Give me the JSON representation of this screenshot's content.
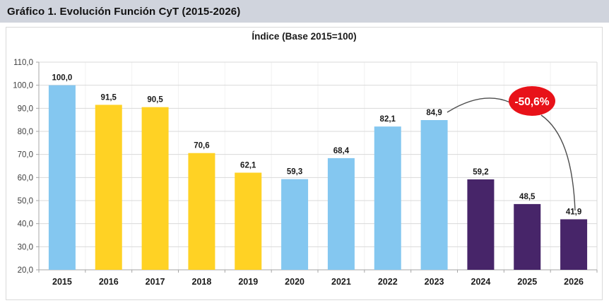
{
  "header": {
    "title": "Gráfico 1. Evolución Función CyT (2015-2026)"
  },
  "chart_data": {
    "type": "bar",
    "title": "Índice (Base 2015=100)",
    "categories": [
      "2015",
      "2016",
      "2017",
      "2018",
      "2019",
      "2020",
      "2021",
      "2022",
      "2023",
      "2024",
      "2025",
      "2026"
    ],
    "values": [
      100.0,
      91.5,
      90.5,
      70.6,
      62.1,
      59.3,
      68.4,
      82.1,
      84.9,
      59.2,
      48.5,
      41.9
    ],
    "value_labels": [
      "100,0",
      "91,5",
      "90,5",
      "70,6",
      "62,1",
      "59,3",
      "68,4",
      "82,1",
      "84,9",
      "59,2",
      "48,5",
      "41,9"
    ],
    "bar_color_keys": [
      "blue",
      "yellow",
      "yellow",
      "yellow",
      "yellow",
      "blue",
      "blue",
      "blue",
      "blue",
      "purple",
      "purple",
      "purple"
    ],
    "palette": {
      "blue": "#84c7f0",
      "yellow": "#ffd224",
      "purple": "#472569"
    },
    "y_axis": {
      "min": 20,
      "max": 110,
      "step": 10,
      "tick_labels": [
        "20,0",
        "30,0",
        "40,0",
        "50,0",
        "60,0",
        "70,0",
        "80,0",
        "90,0",
        "100,0",
        "110,0"
      ]
    },
    "grid": true,
    "legend": "none",
    "annotation": {
      "badge_text": "-50,6%",
      "badge_color": "#e81219",
      "badge_text_color": "#ffffff",
      "connects_from_category": "2023",
      "connects_to_category": "2026",
      "line_color": "#4d4d4d"
    },
    "colors": {
      "gridline": "#d9d9d9",
      "vertical_gridline": "#f2f2f2",
      "axis": "#a6a6a6",
      "tick_label": "#404040",
      "data_label": "#1a1a1a",
      "category_label": "#1a1a1a",
      "header_background": "#d0d4dd",
      "chart_border": "#d9d9d9"
    }
  }
}
